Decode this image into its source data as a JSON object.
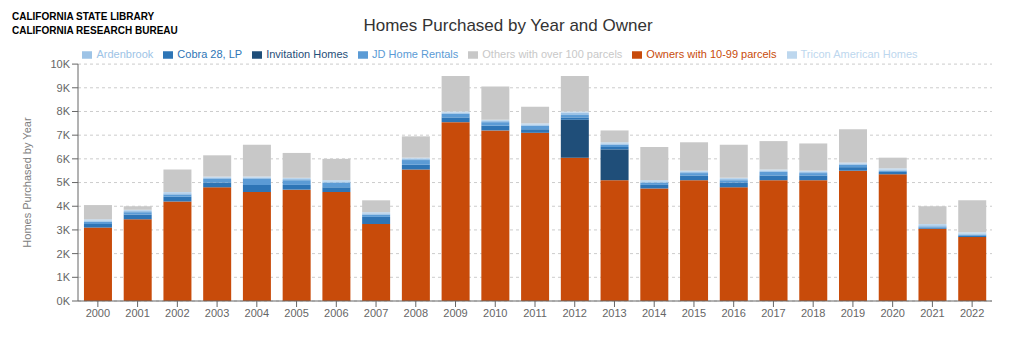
{
  "chart_data": {
    "type": "bar",
    "stacked": true,
    "title": "Homes Purchased by Year and Owner",
    "y_label": "Homes Purchased by Year",
    "annotations": [
      "CALIFORNIA STATE LIBRARY",
      "CALIFORNIA RESEARCH BUREAU"
    ],
    "categories": [
      "2000",
      "2001",
      "2002",
      "2003",
      "2004",
      "2005",
      "2006",
      "2007",
      "2008",
      "2009",
      "2010",
      "2011",
      "2012",
      "2013",
      "2014",
      "2015",
      "2016",
      "2017",
      "2018",
      "2019",
      "2020",
      "2021",
      "2022"
    ],
    "series": [
      {
        "name": "Owners with 10-99 parcels",
        "color": "#C84B0A",
        "values": [
          3100,
          3450,
          4200,
          4800,
          4600,
          4700,
          4600,
          3250,
          5550,
          7550,
          7200,
          7100,
          6050,
          5100,
          4750,
          5100,
          4800,
          5100,
          5100,
          5500,
          5350,
          3050,
          2700
        ]
      },
      {
        "name": "Invitation Homes",
        "color": "#1F4E79",
        "values": [
          0,
          0,
          0,
          0,
          0,
          0,
          0,
          0,
          0,
          0,
          0,
          0,
          1600,
          1300,
          0,
          0,
          0,
          0,
          0,
          0,
          0,
          0,
          0
        ]
      },
      {
        "name": "Cobra 28, LP",
        "color": "#2E75B6",
        "values": [
          150,
          200,
          200,
          200,
          300,
          200,
          200,
          300,
          200,
          200,
          200,
          150,
          100,
          100,
          150,
          200,
          200,
          200,
          200,
          150,
          100,
          50,
          50
        ]
      },
      {
        "name": "JD Home Rentals",
        "color": "#5B9BD5",
        "values": [
          100,
          100,
          100,
          150,
          250,
          200,
          200,
          100,
          200,
          150,
          150,
          150,
          100,
          100,
          100,
          100,
          100,
          150,
          100,
          100,
          50,
          50,
          50
        ]
      },
      {
        "name": "Ardenbrook",
        "color": "#9DC3E6",
        "values": [
          50,
          50,
          50,
          50,
          50,
          50,
          50,
          50,
          50,
          50,
          50,
          50,
          100,
          50,
          50,
          50,
          50,
          50,
          50,
          50,
          50,
          50,
          50
        ]
      },
      {
        "name": "Tricon American Homes",
        "color": "#BDD7EE",
        "values": [
          50,
          50,
          50,
          50,
          50,
          50,
          50,
          50,
          50,
          50,
          50,
          50,
          50,
          50,
          50,
          50,
          50,
          50,
          50,
          50,
          50,
          50,
          50
        ]
      },
      {
        "name": "Others with over 100 parcels",
        "color": "#C8C8C8",
        "values": [
          600,
          150,
          950,
          900,
          1350,
          1050,
          900,
          500,
          900,
          1500,
          1400,
          700,
          1500,
          500,
          1400,
          1200,
          1400,
          1200,
          1150,
          1400,
          450,
          750,
          1350
        ]
      }
    ],
    "ylim": [
      0,
      10000
    ],
    "yticks": [
      {
        "value": 0,
        "label": "0K"
      },
      {
        "value": 1000,
        "label": "1K"
      },
      {
        "value": 2000,
        "label": "2K"
      },
      {
        "value": 3000,
        "label": "3K"
      },
      {
        "value": 4000,
        "label": "4K"
      },
      {
        "value": 5000,
        "label": "5K"
      },
      {
        "value": 6000,
        "label": "6K"
      },
      {
        "value": 7000,
        "label": "7K"
      },
      {
        "value": 8000,
        "label": "8K"
      },
      {
        "value": 9000,
        "label": "9K"
      },
      {
        "value": 10000,
        "label": "10K"
      }
    ],
    "grid": true,
    "legend": "top"
  }
}
